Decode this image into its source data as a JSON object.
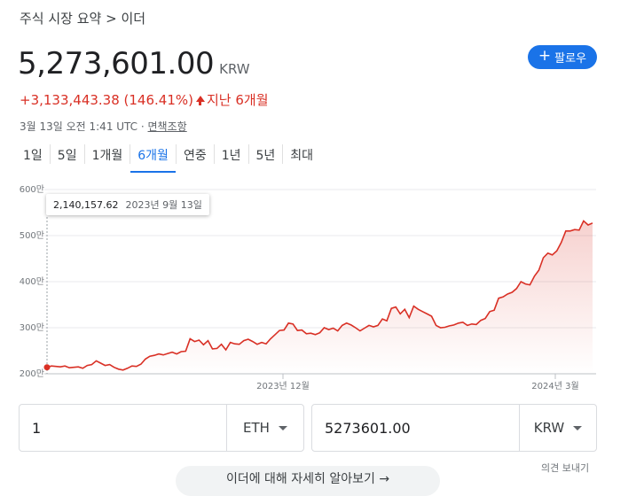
{
  "header": {
    "breadcrumb": "주식 시장 요약 > 이더",
    "price": "5,273,601.00",
    "currency": "KRW",
    "follow_label": "팔로우",
    "change_text": "+3,133,443.38 (146.41%)",
    "change_period": "지난 6개월",
    "timestamp": "3월 13일 오전 1:41 UTC · ",
    "disclaimer_link": "면책조항"
  },
  "tabs": [
    {
      "label": "1일"
    },
    {
      "label": "5일"
    },
    {
      "label": "1개월"
    },
    {
      "label": "6개월",
      "active": true
    },
    {
      "label": "연중"
    },
    {
      "label": "1년"
    },
    {
      "label": "5년"
    },
    {
      "label": "최대"
    }
  ],
  "tooltip": {
    "value": "2,140,157.62",
    "date": "2023년 9월 13일"
  },
  "colors": {
    "line": "#d93025",
    "accent": "#1a73e8"
  },
  "chart_data": {
    "type": "line",
    "x_start": "2023-09-13",
    "x_end": "2024-03-13",
    "y_tick_labels": [
      "600만",
      "500만",
      "400만",
      "300만",
      "200만"
    ],
    "x_tick_labels": [
      "2023년 12월",
      "2024년 3월"
    ],
    "ylim": [
      2000000,
      6000000
    ],
    "grid": true,
    "values": [
      2140157,
      2170000,
      2160000,
      2150000,
      2170000,
      2130000,
      2140000,
      2150000,
      2120000,
      2180000,
      2200000,
      2280000,
      2230000,
      2180000,
      2200000,
      2140000,
      2100000,
      2080000,
      2120000,
      2170000,
      2160000,
      2210000,
      2320000,
      2380000,
      2400000,
      2430000,
      2410000,
      2440000,
      2470000,
      2430000,
      2480000,
      2490000,
      2760000,
      2700000,
      2730000,
      2630000,
      2720000,
      2540000,
      2550000,
      2640000,
      2520000,
      2680000,
      2650000,
      2640000,
      2720000,
      2750000,
      2700000,
      2640000,
      2680000,
      2650000,
      2760000,
      2850000,
      2940000,
      2950000,
      3100000,
      3080000,
      2940000,
      2950000,
      2870000,
      2880000,
      2850000,
      2890000,
      3000000,
      2960000,
      2990000,
      2930000,
      3050000,
      3100000,
      3060000,
      3000000,
      2930000,
      2990000,
      3050000,
      3020000,
      3050000,
      3190000,
      3150000,
      3420000,
      3450000,
      3300000,
      3400000,
      3220000,
      3470000,
      3400000,
      3350000,
      3300000,
      3250000,
      3050000,
      3000000,
      3010000,
      3040000,
      3060000,
      3100000,
      3120000,
      3050000,
      3080000,
      3070000,
      3160000,
      3200000,
      3350000,
      3380000,
      3640000,
      3670000,
      3730000,
      3770000,
      3850000,
      4000000,
      3950000,
      3930000,
      4120000,
      4250000,
      4520000,
      4620000,
      4580000,
      4670000,
      4850000,
      5100000,
      5100000,
      5130000,
      5120000,
      5320000,
      5230000,
      5273601
    ]
  },
  "converter": {
    "from_value": "1",
    "from_unit": "ETH",
    "to_value": "5273601.00",
    "to_unit": "KRW"
  },
  "footer": {
    "feedback": "의견 보내기",
    "more_label": "이더에 대해 자세히 알아보기 →"
  }
}
